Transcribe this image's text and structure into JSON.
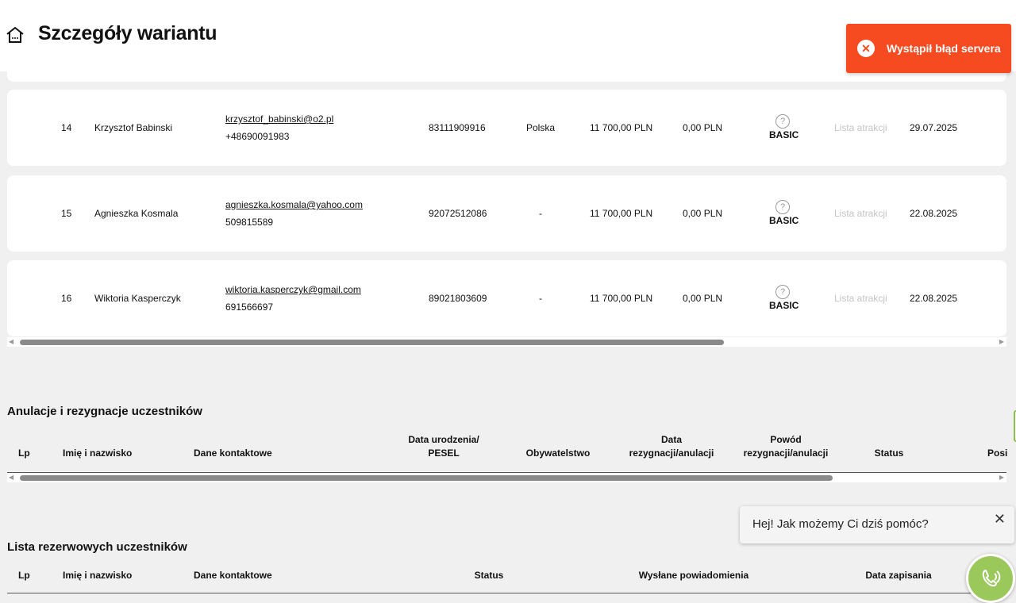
{
  "header": {
    "title": "Szczegóły wariantu",
    "home_icon": "home-icon"
  },
  "toast": {
    "message": "Wystąpił błąd servera",
    "color": "#f64a20",
    "icon": "error-x-icon"
  },
  "participants": [
    {
      "lp": "14",
      "name": "Krzysztof Babinski",
      "email": "krzysztof_babinski@o2.pl",
      "phone": "+48690091983",
      "pesel": "83111909916",
      "citizenship": "Polska",
      "price": "11 700,00 PLN",
      "paid": "0,00 PLN",
      "package": "BASIC",
      "attractions": "Lista atrakcji",
      "date": "29.07.2025"
    },
    {
      "lp": "15",
      "name": "Agnieszka Kosmala",
      "email": "agnieszka.kosmala@yahoo.com",
      "phone": "509815589",
      "pesel": "92072512086",
      "citizenship": "-",
      "price": "11 700,00 PLN",
      "paid": "0,00 PLN",
      "package": "BASIC",
      "attractions": "Lista atrakcji",
      "date": "22.08.2025"
    },
    {
      "lp": "16",
      "name": "Wiktoria Kasperczyk",
      "email": "wiktoria.kasperczyk@gmail.com",
      "phone": "691566697",
      "pesel": "89021803609",
      "citizenship": "-",
      "price": "11 700,00 PLN",
      "paid": "0,00 PLN",
      "package": "BASIC",
      "attractions": "Lista atrakcji",
      "date": "22.08.2025"
    }
  ],
  "cancellations": {
    "title": "Anulacje i rezygnacje uczestników",
    "columns": [
      "Lp",
      "Imię i nazwisko",
      "Dane kontaktowe",
      "Data urodzenia/\nPESEL",
      "Obywatelstwo",
      "Data\nrezygnacji/anulacji",
      "Powód\nrezygnacji/anulacji",
      "Status",
      "Posi"
    ]
  },
  "reserve": {
    "title": "Lista rezerwowych uczestników",
    "columns": [
      "Lp",
      "Imię i nazwisko",
      "Dane kontaktowe",
      "Status",
      "Wysłane powiadomienia",
      "Data zapisania"
    ]
  },
  "chat": {
    "message": "Hej! Jak możemy Ci dziś pomóc?",
    "close": "✕",
    "accent": "#9bc85a"
  }
}
